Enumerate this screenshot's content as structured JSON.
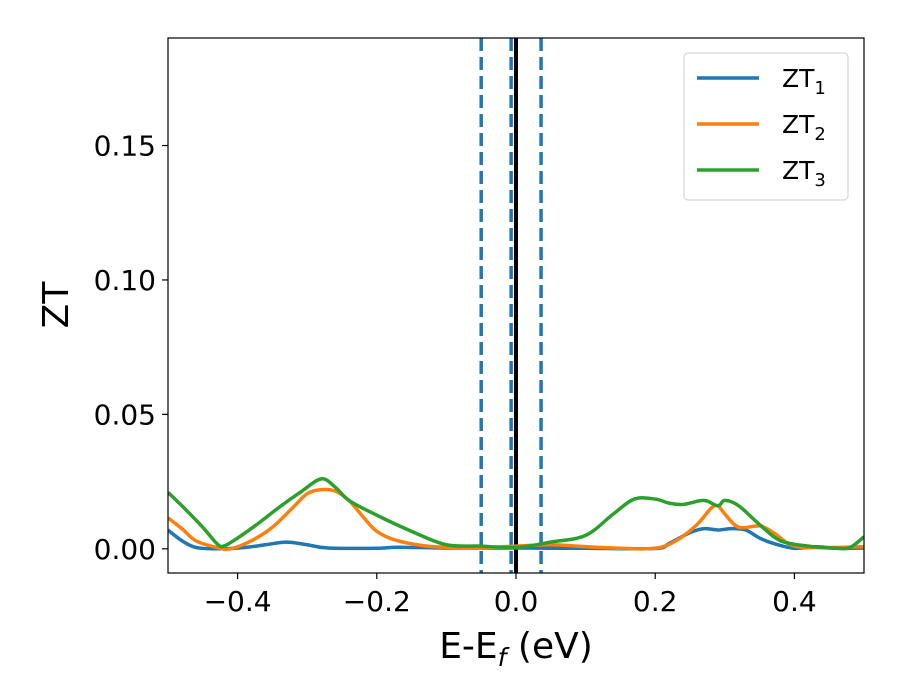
{
  "chart_data": {
    "type": "line",
    "xlabel": "E-E",
    "xlabel_sub": "f",
    "xlabel_unit": " (eV)",
    "ylabel": "ZT",
    "xlim": [
      -0.5,
      0.5
    ],
    "ylim": [
      -0.009,
      0.19
    ],
    "grid": false,
    "legend_position": "top-right",
    "x_ticks": [
      {
        "value": -0.4,
        "label": "−0.4"
      },
      {
        "value": -0.2,
        "label": "−0.2"
      },
      {
        "value": 0.0,
        "label": "0.0"
      },
      {
        "value": 0.2,
        "label": "0.2"
      },
      {
        "value": 0.4,
        "label": "0.4"
      }
    ],
    "y_ticks": [
      {
        "value": 0.0,
        "label": "0.00"
      },
      {
        "value": 0.05,
        "label": "0.05"
      },
      {
        "value": 0.1,
        "label": "0.10"
      },
      {
        "value": 0.15,
        "label": "0.15"
      }
    ],
    "vertical_lines": [
      {
        "x": -0.05,
        "style": "dashed",
        "color": "#1f77b4"
      },
      {
        "x": -0.007,
        "style": "dashed",
        "color": "#1f77b4"
      },
      {
        "x": 0.0,
        "style": "solid",
        "color": "#000000"
      },
      {
        "x": 0.036,
        "style": "dashed",
        "color": "#1f77b4"
      }
    ],
    "series": [
      {
        "name": "ZT",
        "name_sub": "1",
        "color": "#1f77b4",
        "points": [
          [
            -0.5,
            0.007
          ],
          [
            -0.48,
            0.003
          ],
          [
            -0.46,
            0.0005
          ],
          [
            -0.43,
            0.0
          ],
          [
            -0.39,
            0.0005
          ],
          [
            -0.36,
            0.0015
          ],
          [
            -0.33,
            0.0025
          ],
          [
            -0.3,
            0.0015
          ],
          [
            -0.27,
            0.0003
          ],
          [
            -0.2,
            0.0002
          ],
          [
            -0.17,
            0.0006
          ],
          [
            -0.1,
            0.0003
          ],
          [
            0.0,
            0.0003
          ],
          [
            0.05,
            0.0002
          ],
          [
            0.1,
            0.0002
          ],
          [
            0.2,
            0.0001
          ],
          [
            0.22,
            0.002
          ],
          [
            0.25,
            0.006
          ],
          [
            0.27,
            0.0075
          ],
          [
            0.29,
            0.007
          ],
          [
            0.31,
            0.0075
          ],
          [
            0.33,
            0.007
          ],
          [
            0.35,
            0.004
          ],
          [
            0.37,
            0.002
          ],
          [
            0.4,
            0.0002
          ],
          [
            0.43,
            0.0008
          ],
          [
            0.46,
            0.0002
          ],
          [
            0.5,
            0.0003
          ]
        ]
      },
      {
        "name": "ZT",
        "name_sub": "2",
        "color": "#ff7f0e",
        "points": [
          [
            -0.5,
            0.0115
          ],
          [
            -0.48,
            0.0075
          ],
          [
            -0.46,
            0.003
          ],
          [
            -0.43,
            0.0005
          ],
          [
            -0.41,
            0.0
          ],
          [
            -0.38,
            0.003
          ],
          [
            -0.35,
            0.008
          ],
          [
            -0.32,
            0.0155
          ],
          [
            -0.3,
            0.0205
          ],
          [
            -0.28,
            0.022
          ],
          [
            -0.26,
            0.0215
          ],
          [
            -0.24,
            0.018
          ],
          [
            -0.22,
            0.012
          ],
          [
            -0.2,
            0.0065
          ],
          [
            -0.17,
            0.003
          ],
          [
            -0.12,
            0.0008
          ],
          [
            -0.05,
            0.0005
          ],
          [
            0.0,
            0.001
          ],
          [
            0.05,
            0.0015
          ],
          [
            0.1,
            0.0008
          ],
          [
            0.15,
            0.0002
          ],
          [
            0.2,
            0.0002
          ],
          [
            0.23,
            0.003
          ],
          [
            0.26,
            0.009
          ],
          [
            0.28,
            0.015
          ],
          [
            0.29,
            0.016
          ],
          [
            0.3,
            0.013
          ],
          [
            0.32,
            0.008
          ],
          [
            0.35,
            0.0085
          ],
          [
            0.37,
            0.006
          ],
          [
            0.4,
            0.001
          ],
          [
            0.45,
            0.0005
          ],
          [
            0.5,
            0.0008
          ]
        ]
      },
      {
        "name": "ZT",
        "name_sub": "3",
        "color": "#2ca02c",
        "points": [
          [
            -0.5,
            0.021
          ],
          [
            -0.48,
            0.016
          ],
          [
            -0.45,
            0.008
          ],
          [
            -0.43,
            0.002
          ],
          [
            -0.42,
            0.001
          ],
          [
            -0.4,
            0.004
          ],
          [
            -0.37,
            0.0095
          ],
          [
            -0.34,
            0.0155
          ],
          [
            -0.31,
            0.021
          ],
          [
            -0.28,
            0.026
          ],
          [
            -0.26,
            0.023
          ],
          [
            -0.24,
            0.018
          ],
          [
            -0.2,
            0.0125
          ],
          [
            -0.15,
            0.0065
          ],
          [
            -0.1,
            0.0015
          ],
          [
            -0.05,
            0.001
          ],
          [
            0.0,
            0.0005
          ],
          [
            0.05,
            0.0025
          ],
          [
            0.1,
            0.005
          ],
          [
            0.14,
            0.013
          ],
          [
            0.17,
            0.0185
          ],
          [
            0.2,
            0.0185
          ],
          [
            0.22,
            0.017
          ],
          [
            0.24,
            0.0165
          ],
          [
            0.27,
            0.018
          ],
          [
            0.29,
            0.016
          ],
          [
            0.3,
            0.018
          ],
          [
            0.32,
            0.016
          ],
          [
            0.35,
            0.009
          ],
          [
            0.38,
            0.003
          ],
          [
            0.42,
            0.001
          ],
          [
            0.46,
            0.0002
          ],
          [
            0.48,
            0.0005
          ],
          [
            0.5,
            0.0045
          ]
        ]
      }
    ]
  }
}
